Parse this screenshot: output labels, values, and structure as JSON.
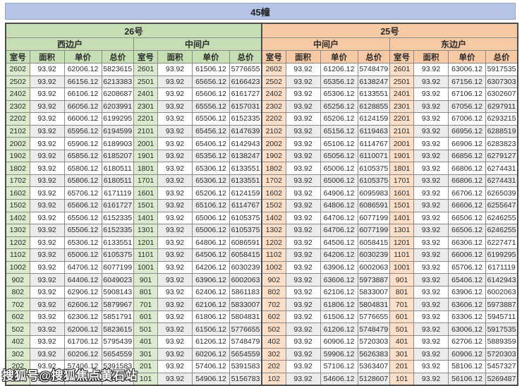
{
  "title": "45幢",
  "watermark": "搜狐号@搜狐焦点黄石站",
  "columns": [
    "室号",
    "面积",
    "单价",
    "总价"
  ],
  "sections": [
    {
      "building": "26号",
      "theme": "green",
      "groups": [
        {
          "name": "西边户"
        },
        {
          "name": "中间户"
        }
      ]
    },
    {
      "building": "25号",
      "theme": "peach",
      "groups": [
        {
          "name": "中间户"
        },
        {
          "name": "东边户"
        }
      ]
    }
  ],
  "colors": {
    "title_bg": "#b4c3e6",
    "section_green": "#c6deb3",
    "section_peach": "#f5c9a4",
    "row_green": "#dcebcd",
    "row_peach": "#fbdfc9",
    "stripe": "#ececec",
    "border": "#8a8a8a",
    "text": "#2b2b2b"
  },
  "rows": [
    [
      "2602",
      "93.92",
      "62006.12",
      "5823615",
      "2601",
      "93.92",
      "61506.12",
      "5776655",
      "2602",
      "93.92",
      "61206.12",
      "5748479",
      "2601",
      "93.92",
      "63006.12",
      "5917535"
    ],
    [
      "2502",
      "93.92",
      "66156.12",
      "6213383",
      "2501",
      "93.92",
      "65656.12",
      "6166423",
      "2502",
      "93.92",
      "65356.12",
      "6138247",
      "2501",
      "93.92",
      "67156.12",
      "6307303"
    ],
    [
      "2402",
      "93.92",
      "66106.12",
      "6208687",
      "2401",
      "93.92",
      "65606.12",
      "6161727",
      "2402",
      "93.92",
      "65306.12",
      "6133551",
      "2401",
      "93.92",
      "67106.12",
      "6302607"
    ],
    [
      "2302",
      "93.92",
      "66056.12",
      "6203991",
      "2301",
      "93.92",
      "65556.12",
      "6157031",
      "2302",
      "93.92",
      "65256.12",
      "6128855",
      "2301",
      "93.92",
      "67056.12",
      "6297911"
    ],
    [
      "2202",
      "93.92",
      "66006.12",
      "6199295",
      "2201",
      "93.92",
      "65506.12",
      "6152335",
      "2202",
      "93.92",
      "65206.12",
      "6124159",
      "2201",
      "93.92",
      "67006.12",
      "6293215"
    ],
    [
      "2102",
      "93.92",
      "65956.12",
      "6194599",
      "2101",
      "93.92",
      "65456.12",
      "6147639",
      "2102",
      "93.92",
      "65156.12",
      "6119463",
      "2101",
      "93.92",
      "66956.12",
      "6288519"
    ],
    [
      "2002",
      "93.92",
      "65906.12",
      "6189903",
      "2001",
      "93.92",
      "65406.12",
      "6142943",
      "2002",
      "93.92",
      "65106.12",
      "6114767",
      "2001",
      "93.92",
      "66906.12",
      "6283823"
    ],
    [
      "1902",
      "93.92",
      "65856.12",
      "6185207",
      "1901",
      "93.92",
      "65356.12",
      "6138247",
      "1902",
      "93.92",
      "65056.12",
      "6110071",
      "1901",
      "93.92",
      "66856.12",
      "6279127"
    ],
    [
      "1802",
      "93.92",
      "65806.12",
      "6180511",
      "1801",
      "93.92",
      "65306.12",
      "6133551",
      "1802",
      "93.92",
      "65006.12",
      "6105375",
      "1801",
      "93.92",
      "66806.12",
      "6274431"
    ],
    [
      "1702",
      "93.92",
      "65806.12",
      "6180511",
      "1701",
      "93.92",
      "65306.12",
      "6133551",
      "1702",
      "93.92",
      "65006.12",
      "6105375",
      "1701",
      "93.92",
      "66806.12",
      "6274431"
    ],
    [
      "1602",
      "93.92",
      "65706.12",
      "6171119",
      "1601",
      "93.92",
      "65206.12",
      "6124159",
      "1602",
      "93.92",
      "64906.12",
      "6095983",
      "1601",
      "93.92",
      "66706.12",
      "6265039"
    ],
    [
      "1502",
      "93.92",
      "65606.12",
      "6161727",
      "1501",
      "93.92",
      "65106.12",
      "6114767",
      "1502",
      "93.92",
      "64806.12",
      "6086591",
      "1501",
      "93.92",
      "66606.12",
      "6255647"
    ],
    [
      "1402",
      "93.92",
      "65506.12",
      "6152335",
      "1401",
      "93.92",
      "65006.12",
      "6105375",
      "1402",
      "93.92",
      "64706.12",
      "6077199",
      "1401",
      "93.92",
      "66506.12",
      "6246255"
    ],
    [
      "1302",
      "93.92",
      "65506.12",
      "6152335",
      "1301",
      "93.92",
      "65006.12",
      "6105375",
      "1302",
      "93.92",
      "64706.12",
      "6077199",
      "1301",
      "93.92",
      "66506.12",
      "6246255"
    ],
    [
      "1202",
      "93.92",
      "65306.12",
      "6133551",
      "1201",
      "93.92",
      "64806.12",
      "6086591",
      "1202",
      "93.92",
      "64506.12",
      "6058415",
      "1201",
      "93.92",
      "66306.12",
      "6227471"
    ],
    [
      "1102",
      "93.92",
      "65006.12",
      "6105375",
      "1101",
      "93.92",
      "64506.12",
      "6058415",
      "1102",
      "93.92",
      "64206.12",
      "6030239",
      "1101",
      "93.92",
      "66006.12",
      "6199295"
    ],
    [
      "1002",
      "93.92",
      "64706.12",
      "6077199",
      "1001",
      "93.92",
      "64206.12",
      "6030239",
      "1002",
      "93.92",
      "63906.12",
      "6002063",
      "1001",
      "93.92",
      "65706.12",
      "6171119"
    ],
    [
      "902",
      "93.92",
      "64406.12",
      "6049023",
      "901",
      "93.92",
      "63906.12",
      "6002063",
      "902",
      "93.92",
      "63606.12",
      "5973887",
      "901",
      "93.92",
      "65406.12",
      "6142943"
    ],
    [
      "802",
      "93.92",
      "62906.12",
      "5908143",
      "801",
      "93.92",
      "62406.12",
      "5861183",
      "802",
      "93.92",
      "62106.12",
      "5833007",
      "801",
      "93.92",
      "63906.12",
      "6002063"
    ],
    [
      "702",
      "93.92",
      "62606.12",
      "5879967",
      "701",
      "93.92",
      "62106.12",
      "5833007",
      "702",
      "93.92",
      "61806.12",
      "5804831",
      "701",
      "93.92",
      "63606.12",
      "5973887"
    ],
    [
      "602",
      "93.92",
      "62306.12",
      "5851791",
      "601",
      "93.92",
      "61806.12",
      "5804831",
      "602",
      "93.92",
      "61506.12",
      "5776655",
      "601",
      "93.92",
      "63306.12",
      "5945711"
    ],
    [
      "502",
      "93.92",
      "62006.12",
      "5823615",
      "501",
      "93.92",
      "61506.12",
      "5776655",
      "502",
      "93.92",
      "61206.12",
      "5748479",
      "501",
      "93.92",
      "63006.12",
      "5917535"
    ],
    [
      "402",
      "93.92",
      "61706.12",
      "5795439",
      "401",
      "93.92",
      "61206.12",
      "5748479",
      "402",
      "93.92",
      "60906.12",
      "5720303",
      "401",
      "93.92",
      "62706.12",
      "5889359"
    ],
    [
      "302",
      "93.92",
      "60206.12",
      "5654559",
      "301",
      "93.92",
      "60206.12",
      "5654559",
      "302",
      "93.92",
      "59906.12",
      "5626383",
      "301",
      "93.92",
      "60906.12",
      "5720303"
    ],
    [
      "202",
      "93.92",
      "57406.12",
      "5391583",
      "201",
      "93.92",
      "57406.12",
      "5391583",
      "202",
      "93.92",
      "57106.12",
      "5363407",
      "201",
      "93.92",
      "58106.12",
      "5457327"
    ],
    [
      "102",
      "93.92",
      "55406.12",
      "5203743",
      "101",
      "93.92",
      "54906.12",
      "5156783",
      "102",
      "93.92",
      "54606.12",
      "5128607",
      "101",
      "93.92",
      "56106.12",
      "5269487"
    ]
  ]
}
